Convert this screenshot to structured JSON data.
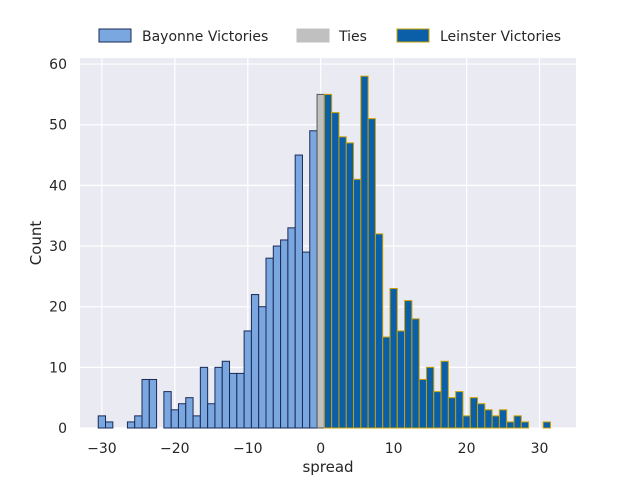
{
  "chart_data": {
    "type": "bar",
    "title": "",
    "xlabel": "spread",
    "ylabel": "Count",
    "xlim": [
      -33,
      35
    ],
    "ylim": [
      0,
      61
    ],
    "xticks": [
      -30,
      -20,
      -10,
      0,
      10,
      20,
      30
    ],
    "yticks": [
      0,
      10,
      20,
      30,
      40,
      50,
      60
    ],
    "grid": true,
    "legend_position": "top",
    "series": [
      {
        "name": "Bayonne Victories",
        "fill": "#7aa7e0",
        "edge": "#1a2a55",
        "x": [
          -30,
          -29,
          -28,
          -27,
          -26,
          -25,
          -24,
          -23,
          -22,
          -21,
          -20,
          -19,
          -18,
          -17,
          -16,
          -15,
          -14,
          -13,
          -12,
          -11,
          -10,
          -9,
          -8,
          -7,
          -6,
          -5,
          -4,
          -3,
          -2,
          -1
        ],
        "values": [
          2,
          1,
          0,
          0,
          1,
          2,
          8,
          8,
          0,
          6,
          3,
          4,
          5,
          2,
          10,
          4,
          10,
          11,
          9,
          9,
          16,
          22,
          20,
          28,
          30,
          31,
          33,
          45,
          29,
          49
        ]
      },
      {
        "name": "Ties",
        "fill": "#c0c0c0",
        "edge": "#555555",
        "x": [
          0
        ],
        "values": [
          55
        ]
      },
      {
        "name": "Leinster Victories",
        "fill": "#0a5fa8",
        "edge": "#c8a000",
        "x": [
          1,
          2,
          3,
          4,
          5,
          6,
          7,
          8,
          9,
          10,
          11,
          12,
          13,
          14,
          15,
          16,
          17,
          18,
          19,
          20,
          21,
          22,
          23,
          24,
          25,
          26,
          27,
          28,
          29,
          30,
          31
        ],
        "values": [
          55,
          52,
          48,
          47,
          41,
          58,
          51,
          32,
          15,
          23,
          16,
          21,
          18,
          8,
          10,
          6,
          11,
          5,
          6,
          2,
          5,
          4,
          3,
          2,
          3,
          1,
          2,
          1,
          0,
          0,
          1
        ]
      }
    ]
  }
}
